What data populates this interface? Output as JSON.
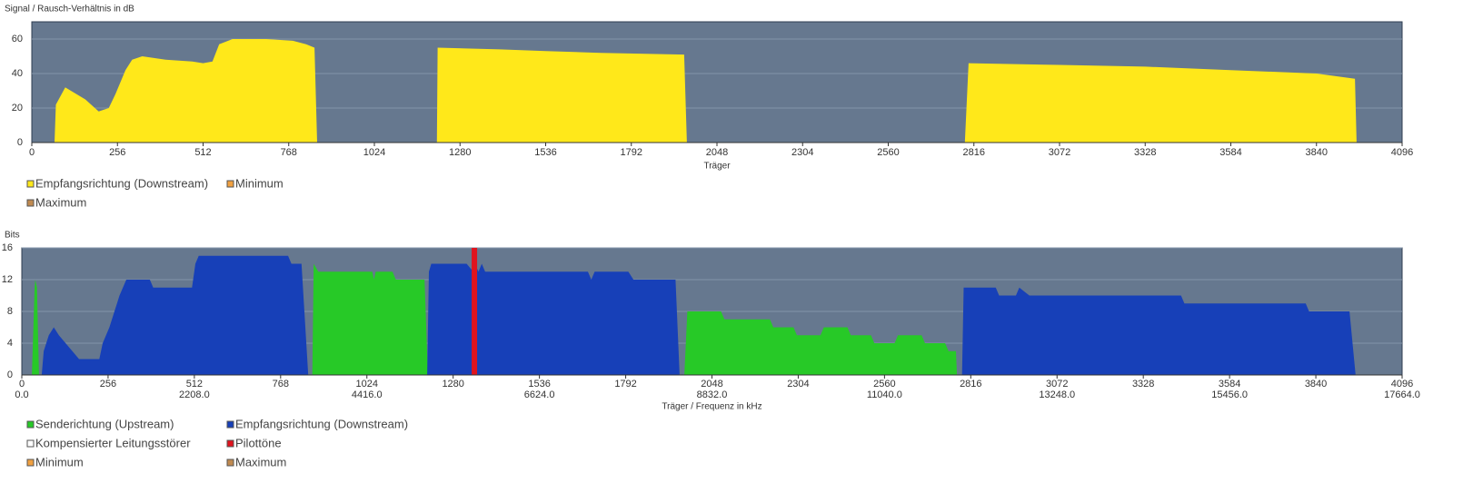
{
  "chart_data": [
    {
      "type": "area",
      "title": "Signal / Rausch-Verhältnis in dB",
      "x_label": "Träger",
      "xlim": [
        0,
        4096
      ],
      "xticks": [
        0,
        256,
        512,
        768,
        1024,
        1280,
        1536,
        1792,
        2048,
        2304,
        2560,
        2816,
        3072,
        3328,
        3584,
        3840,
        4096
      ],
      "ylim": [
        0,
        70
      ],
      "yticks": [
        0,
        20,
        40,
        60
      ],
      "grid": true,
      "series": [
        {
          "name": "Empfangsrichtung (Downstream)",
          "color": "#ffe81a",
          "x": [
            68,
            72,
            100,
            160,
            200,
            230,
            250,
            280,
            300,
            330,
            400,
            480,
            512,
            540,
            560,
            600,
            700,
            780,
            820,
            845,
            853,
            null,
            1211,
            1213,
            1400,
            1536,
            1700,
            1950,
            1958,
            null,
            2789,
            2800,
            3072,
            3328,
            3584,
            3840,
            3955,
            3960
          ],
          "values": [
            0,
            22,
            32,
            25,
            18,
            20,
            28,
            42,
            48,
            50,
            48,
            47,
            46,
            47,
            57,
            60,
            60,
            59,
            57,
            55,
            0,
            null,
            0,
            55,
            54,
            53,
            52,
            51,
            0,
            null,
            0,
            46,
            45,
            44,
            42,
            40,
            37,
            0
          ]
        },
        {
          "name": "Minimum",
          "color": "#f0a040"
        },
        {
          "name": "Maximum",
          "color": "#c08a50"
        }
      ]
    },
    {
      "type": "area",
      "title": "Bits",
      "x_label": "Träger / Frequenz in kHz",
      "xlim": [
        0,
        4096
      ],
      "xticks": [
        0,
        256,
        512,
        768,
        1024,
        1280,
        1536,
        1792,
        2048,
        2304,
        2560,
        2816,
        3072,
        3328,
        3584,
        3840,
        4096
      ],
      "x2lim": [
        0,
        17664
      ],
      "x2ticks": [
        {
          "value": 0,
          "label": "0.0"
        },
        {
          "value": 2208,
          "label": "2208.0"
        },
        {
          "value": 4416,
          "label": "4416.0"
        },
        {
          "value": 6624,
          "label": "6624.0"
        },
        {
          "value": 8832,
          "label": "8832.0"
        },
        {
          "value": 11040,
          "label": "11040.0"
        },
        {
          "value": 13248,
          "label": "13248.0"
        },
        {
          "value": 15456,
          "label": "15456.0"
        },
        {
          "value": 17664,
          "label": "17664.0"
        }
      ],
      "ylim": [
        0,
        16
      ],
      "yticks": [
        0,
        4,
        8,
        12,
        16
      ],
      "grid": true,
      "series": [
        {
          "name": "Senderichtung (Upstream)",
          "color": "#27c927",
          "x": [
            30,
            38,
            40,
            45,
            51,
            null,
            862,
            866,
            880,
            1040,
            1045,
            1050,
            1100,
            1110,
            1195,
            1205,
            null,
            1966,
            1975,
            2075,
            2085,
            2220,
            2230,
            2290,
            2300,
            2370,
            2380,
            2450,
            2460,
            2520,
            2530,
            2590,
            2600,
            2670,
            2680,
            2740,
            2750,
            2772,
            2775
          ],
          "values": [
            0,
            11,
            12,
            11,
            0,
            null,
            0,
            14,
            13,
            13,
            12,
            13,
            13,
            12,
            12,
            0,
            null,
            0,
            8,
            8,
            7,
            7,
            6,
            6,
            5,
            5,
            6,
            6,
            5,
            5,
            4,
            4,
            5,
            5,
            4,
            4,
            3,
            3,
            0
          ]
        },
        {
          "name": "Empfangsrichtung (Downstream)",
          "color": "#1740b8",
          "x": [
            59,
            65,
            80,
            95,
            110,
            130,
            150,
            170,
            230,
            240,
            260,
            290,
            310,
            380,
            390,
            505,
            515,
            525,
            790,
            800,
            830,
            850,
            null,
            1203,
            1208,
            1215,
            1320,
            1340,
            1345,
            1355,
            1365,
            1375,
            1680,
            1690,
            1700,
            1800,
            1815,
            1940,
            1952,
            null,
            2790,
            2795,
            2890,
            2900,
            2950,
            2960,
            2990,
            3000,
            3440,
            3450,
            3810,
            3820,
            3940,
            3958
          ],
          "values": [
            0,
            3,
            5,
            6,
            5,
            4,
            3,
            2,
            2,
            4,
            6,
            10,
            12,
            12,
            11,
            11,
            14,
            15,
            15,
            14,
            14,
            0,
            null,
            0,
            13,
            14,
            14,
            13,
            14,
            13,
            14,
            13,
            13,
            12,
            13,
            13,
            12,
            12,
            0,
            null,
            0,
            11,
            11,
            10,
            10,
            11,
            10,
            10,
            10,
            9,
            9,
            8,
            8,
            0
          ]
        },
        {
          "name": "Kompensierter Leitungsstörer",
          "color": "#ffffff"
        },
        {
          "name": "Pilottöne",
          "color": "#e0141e",
          "type": "bar",
          "x": [
            1343
          ],
          "values": [
            16
          ]
        },
        {
          "name": "Minimum",
          "color": "#f0a040"
        },
        {
          "name": "Maximum",
          "color": "#c08a50"
        }
      ]
    }
  ]
}
